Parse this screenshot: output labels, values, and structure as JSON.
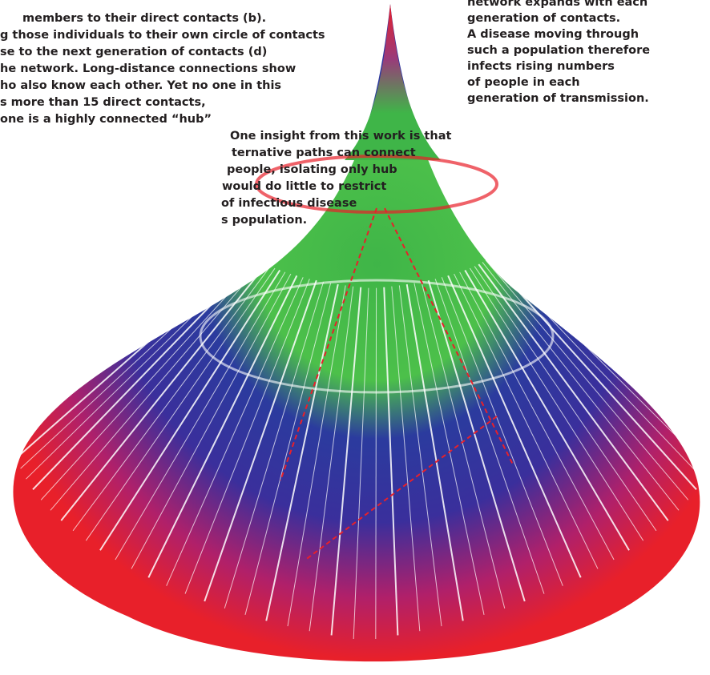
{
  "left_text": {
    "lines": [
      "members to their direct contacts (b).",
      "g those individuals to their own circle of contacts",
      "se to the next generation of contacts (d)",
      "he network. Long-distance connections show",
      "ho also know each other. Yet no one in this",
      "s more than 15 direct contacts,",
      "one is a highly connected “hub”",
      "One insight from this work is that",
      "ternative paths can connect",
      "people, isolating only hub",
      "would do little to restrict",
      "of infectious disease",
      "s population."
    ]
  },
  "right_text": {
    "lines": [
      "network expands with each",
      "generation of contacts.",
      "A disease moving through",
      "such a population therefore",
      "infects rising numbers",
      "of people in each",
      "generation of transmission."
    ]
  }
}
